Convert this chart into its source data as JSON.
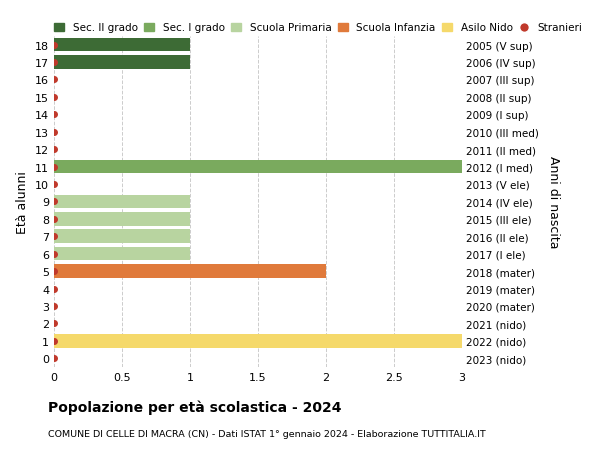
{
  "ages": [
    18,
    17,
    16,
    15,
    14,
    13,
    12,
    11,
    10,
    9,
    8,
    7,
    6,
    5,
    4,
    3,
    2,
    1,
    0
  ],
  "right_labels": [
    "2005 (V sup)",
    "2006 (IV sup)",
    "2007 (III sup)",
    "2008 (II sup)",
    "2009 (I sup)",
    "2010 (III med)",
    "2011 (II med)",
    "2012 (I med)",
    "2013 (V ele)",
    "2014 (IV ele)",
    "2015 (III ele)",
    "2016 (II ele)",
    "2017 (I ele)",
    "2018 (mater)",
    "2019 (mater)",
    "2020 (mater)",
    "2021 (nido)",
    "2022 (nido)",
    "2023 (nido)"
  ],
  "bar_values": [
    1,
    1,
    0,
    0,
    0,
    0,
    0,
    3.05,
    0,
    1,
    1,
    1,
    1,
    2,
    0,
    0,
    0,
    3.05,
    0
  ],
  "bar_colors": [
    "#3d6b35",
    "#3d6b35",
    "#3d6b35",
    "#3d6b35",
    "#3d6b35",
    "#7aaa5e",
    "#7aaa5e",
    "#7aaa5e",
    "#b8d4a0",
    "#b8d4a0",
    "#b8d4a0",
    "#b8d4a0",
    "#b8d4a0",
    "#e07a3b",
    "#e07a3b",
    "#e07a3b",
    "#f5d96b",
    "#f5d96b",
    "#f5d96b"
  ],
  "stranieri_dots": [
    18,
    17,
    16,
    15,
    14,
    13,
    12,
    11,
    10,
    9,
    8,
    7,
    6,
    5,
    4,
    3,
    2,
    1,
    0
  ],
  "dot_color": "#c0392b",
  "legend_items": [
    {
      "label": "Sec. II grado",
      "color": "#3d6b35",
      "type": "patch"
    },
    {
      "label": "Sec. I grado",
      "color": "#7aaa5e",
      "type": "patch"
    },
    {
      "label": "Scuola Primaria",
      "color": "#b8d4a0",
      "type": "patch"
    },
    {
      "label": "Scuola Infanzia",
      "color": "#e07a3b",
      "type": "patch"
    },
    {
      "label": "Asilo Nido",
      "color": "#f5d96b",
      "type": "patch"
    },
    {
      "label": "Stranieri",
      "color": "#c0392b",
      "type": "dot"
    }
  ],
  "ylabel_left": "Età alunni",
  "ylabel_right": "Anni di nascita",
  "title": "Popolazione per età scolastica - 2024",
  "subtitle": "COMUNE DI CELLE DI MACRA (CN) - Dati ISTAT 1° gennaio 2024 - Elaborazione TUTTITALIA.IT",
  "xlim": [
    0,
    3.0
  ],
  "xticks": [
    0,
    0.5,
    1.0,
    1.5,
    2.0,
    2.5,
    3.0
  ],
  "ylim": [
    -0.5,
    18.5
  ],
  "background_color": "#ffffff",
  "grid_color": "#cccccc",
  "bar_height": 0.78,
  "dot_size": 4
}
